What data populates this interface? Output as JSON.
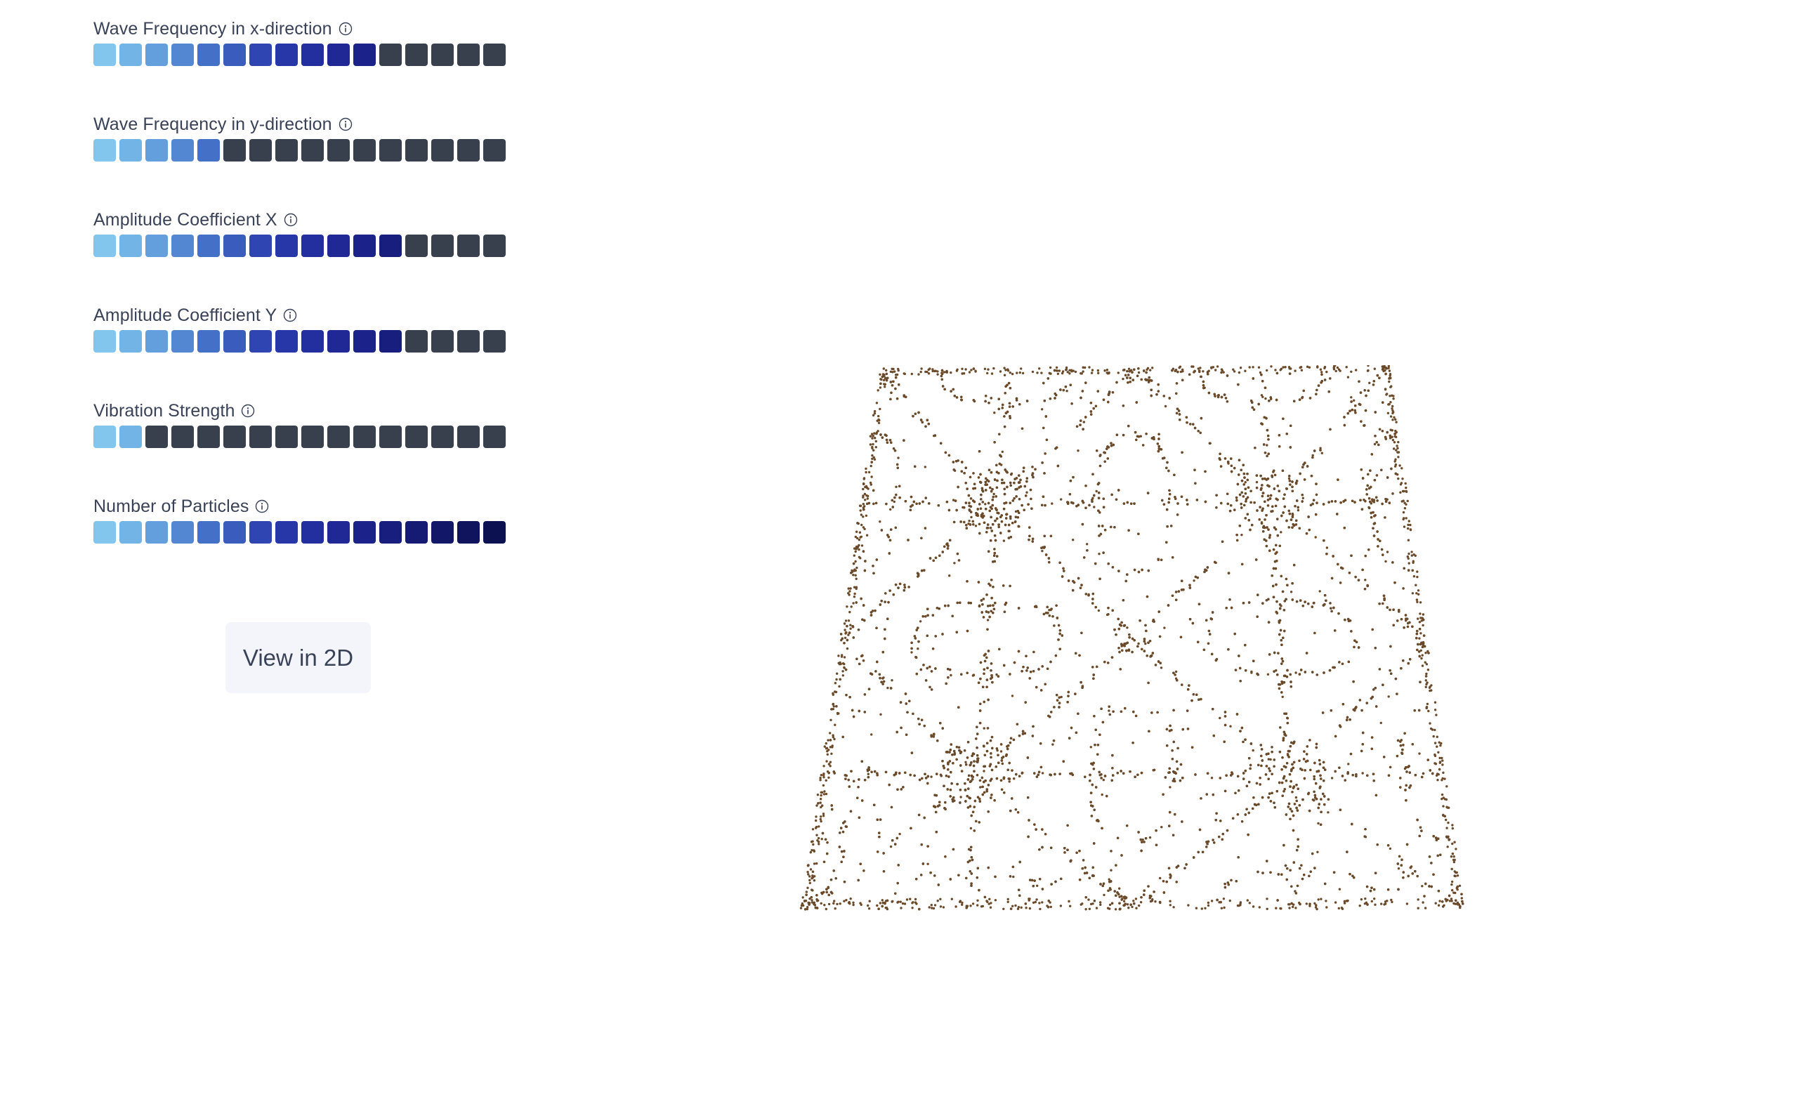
{
  "controls": [
    {
      "label": "Wave Frequency in x-direction",
      "segments": 16,
      "level": 11
    },
    {
      "label": "Wave Frequency in y-direction",
      "segments": 16,
      "level": 5
    },
    {
      "label": "Amplitude Coefficient X",
      "segments": 16,
      "level": 12
    },
    {
      "label": "Amplitude Coefficient Y",
      "segments": 16,
      "level": 12
    },
    {
      "label": "Vibration Strength",
      "segments": 16,
      "level": 2
    },
    {
      "label": "Number of Particles",
      "segments": 16,
      "level": 16
    }
  ],
  "palette": {
    "active": [
      "#82c6ee",
      "#73b4e6",
      "#639fdc",
      "#5387d2",
      "#4570c8",
      "#3a5cbc",
      "#2f46b2",
      "#2737a8",
      "#232f9e",
      "#1f2894",
      "#1b2289",
      "#181e7e",
      "#151a73",
      "#121768",
      "#0f145d",
      "#0c1152"
    ],
    "inactive": "#383f4d",
    "particle": "#6b4a2a"
  },
  "button": {
    "label": "View in 2D"
  },
  "visualization": {
    "name": "chladni-plate-3d",
    "mode": "3D"
  }
}
